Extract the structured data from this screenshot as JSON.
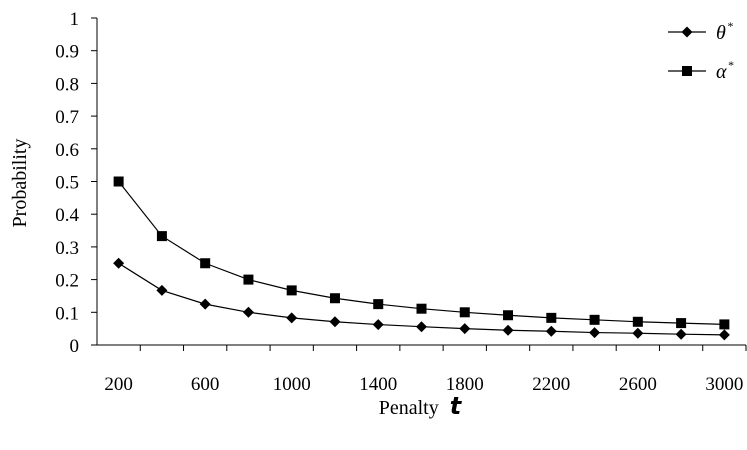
{
  "chart_data": {
    "type": "line",
    "x": [
      200,
      400,
      600,
      800,
      1000,
      1200,
      1400,
      1600,
      1800,
      2000,
      2200,
      2400,
      2600,
      2800,
      3000
    ],
    "series": [
      {
        "name": "θ",
        "name_sup": "*",
        "marker": "diamond",
        "values": [
          0.25,
          0.167,
          0.125,
          0.1,
          0.083,
          0.071,
          0.0625,
          0.056,
          0.05,
          0.045,
          0.042,
          0.038,
          0.036,
          0.033,
          0.031
        ]
      },
      {
        "name": "α",
        "name_sup": "*",
        "marker": "square",
        "values": [
          0.5,
          0.333,
          0.25,
          0.2,
          0.167,
          0.143,
          0.125,
          0.111,
          0.1,
          0.091,
          0.083,
          0.077,
          0.071,
          0.067,
          0.063
        ]
      }
    ],
    "x_tick_labels": [
      "200",
      "600",
      "1000",
      "1400",
      "1800",
      "2200",
      "2600",
      "3000"
    ],
    "y_tick_labels": [
      "0",
      "0.1",
      "0.2",
      "0.3",
      "0.4",
      "0.5",
      "0.6",
      "0.7",
      "0.8",
      "0.9",
      "1"
    ],
    "xlabel": "Penalty",
    "xlabel_var": "t",
    "ylabel": "Probability",
    "ylim": [
      0,
      1
    ],
    "grid": false,
    "legend_position": "top-right",
    "line_color": "#000000"
  }
}
